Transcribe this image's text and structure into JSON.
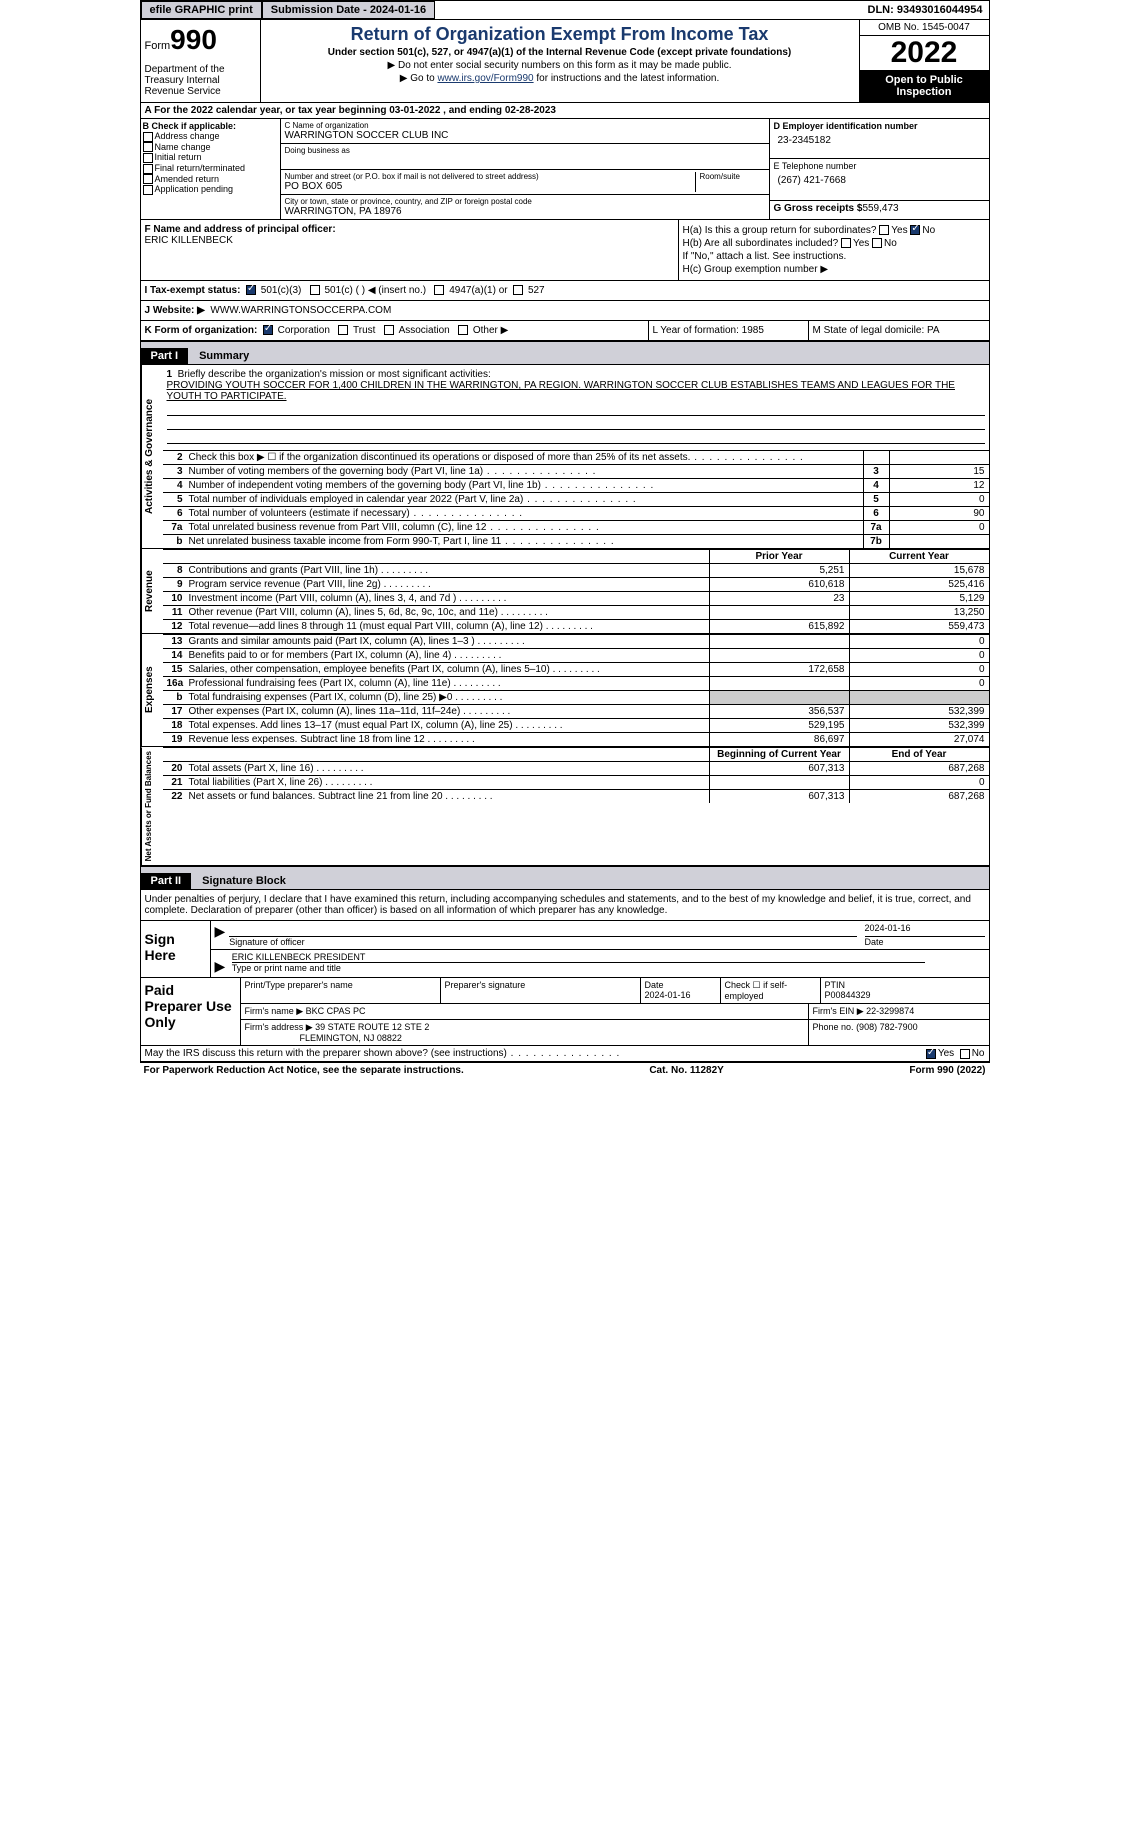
{
  "topbar": {
    "efile": "efile GRAPHIC print",
    "submission": "Submission Date - 2024-01-16",
    "dln": "DLN: 93493016044954"
  },
  "header": {
    "form_label": "Form",
    "form_num": "990",
    "dept": "Department of the Treasury Internal Revenue Service",
    "title": "Return of Organization Exempt From Income Tax",
    "subtitle": "Under section 501(c), 527, or 4947(a)(1) of the Internal Revenue Code (except private foundations)",
    "line1": "▶ Do not enter social security numbers on this form as it may be made public.",
    "line2_pre": "▶ Go to ",
    "line2_link": "www.irs.gov/Form990",
    "line2_post": " for instructions and the latest information.",
    "omb": "OMB No. 1545-0047",
    "year": "2022",
    "inspection": "Open to Public Inspection"
  },
  "lineA": "A For the 2022 calendar year, or tax year beginning 03-01-2022   , and ending 02-28-2023",
  "sectionB": {
    "header": "B Check if applicable:",
    "items": [
      "Address change",
      "Name change",
      "Initial return",
      "Final return/terminated",
      "Amended return",
      "Application pending"
    ],
    "c_label": "C Name of organization",
    "c_name": "WARRINGTON SOCCER CLUB INC",
    "dba": "Doing business as",
    "street_label": "Number and street (or P.O. box if mail is not delivered to street address)",
    "room": "Room/suite",
    "street": "PO BOX 605",
    "city_label": "City or town, state or province, country, and ZIP or foreign postal code",
    "city": "WARRINGTON, PA  18976",
    "d_label": "D Employer identification number",
    "d_val": "23-2345182",
    "e_label": "E Telephone number",
    "e_val": "(267) 421-7668",
    "g_label": "G Gross receipts $",
    "g_val": "559,473"
  },
  "sectionFH": {
    "f_label": "F Name and address of principal officer:",
    "f_name": "ERIC KILLENBECK",
    "ha": "H(a)  Is this a group return for subordinates?",
    "hb": "H(b)  Are all subordinates included?",
    "hb_note": "If \"No,\" attach a list. See instructions.",
    "hc": "H(c)  Group exemption number ▶",
    "yes": "Yes",
    "no": "No"
  },
  "status": {
    "label": "I   Tax-exempt status:",
    "s1": "501(c)(3)",
    "s2": "501(c) (  ) ◀ (insert no.)",
    "s3": "4947(a)(1) or",
    "s4": "527"
  },
  "website": {
    "label": "J  Website: ▶",
    "val": "WWW.WARRINGTONSOCCERPA.COM"
  },
  "rowK": {
    "k": "K Form of organization:",
    "corp": "Corporation",
    "trust": "Trust",
    "assoc": "Association",
    "other": "Other ▶",
    "l": "L Year of formation: 1985",
    "m": "M State of legal domicile: PA"
  },
  "part1": {
    "hdr": "Part I",
    "title": "Summary"
  },
  "mission": {
    "num": "1",
    "label": "Briefly describe the organization's mission or most significant activities:",
    "text": "PROVIDING YOUTH SOCCER FOR 1,400 CHILDREN IN THE WARRINGTON, PA REGION. WARRINGTON SOCCER CLUB ESTABLISHES TEAMS AND LEAGUES FOR THE YOUTH TO PARTICIPATE."
  },
  "gov_rows": [
    {
      "n": "2",
      "l": "Check this box ▶ ☐ if the organization discontinued its operations or disposed of more than 25% of its net assets.",
      "box": "",
      "v": ""
    },
    {
      "n": "3",
      "l": "Number of voting members of the governing body (Part VI, line 1a)",
      "box": "3",
      "v": "15"
    },
    {
      "n": "4",
      "l": "Number of independent voting members of the governing body (Part VI, line 1b)",
      "box": "4",
      "v": "12"
    },
    {
      "n": "5",
      "l": "Total number of individuals employed in calendar year 2022 (Part V, line 2a)",
      "box": "5",
      "v": "0"
    },
    {
      "n": "6",
      "l": "Total number of volunteers (estimate if necessary)",
      "box": "6",
      "v": "90"
    },
    {
      "n": "7a",
      "l": "Total unrelated business revenue from Part VIII, column (C), line 12",
      "box": "7a",
      "v": "0"
    },
    {
      "n": "b",
      "l": "Net unrelated business taxable income from Form 990-T, Part I, line 11",
      "box": "7b",
      "v": ""
    }
  ],
  "col_hdrs": {
    "prior": "Prior Year",
    "current": "Current Year",
    "boy": "Beginning of Current Year",
    "eoy": "End of Year"
  },
  "rev_rows": [
    {
      "n": "8",
      "l": "Contributions and grants (Part VIII, line 1h)",
      "p": "5,251",
      "c": "15,678"
    },
    {
      "n": "9",
      "l": "Program service revenue (Part VIII, line 2g)",
      "p": "610,618",
      "c": "525,416"
    },
    {
      "n": "10",
      "l": "Investment income (Part VIII, column (A), lines 3, 4, and 7d )",
      "p": "23",
      "c": "5,129"
    },
    {
      "n": "11",
      "l": "Other revenue (Part VIII, column (A), lines 5, 6d, 8c, 9c, 10c, and 11e)",
      "p": "",
      "c": "13,250"
    },
    {
      "n": "12",
      "l": "Total revenue—add lines 8 through 11 (must equal Part VIII, column (A), line 12)",
      "p": "615,892",
      "c": "559,473"
    }
  ],
  "exp_rows": [
    {
      "n": "13",
      "l": "Grants and similar amounts paid (Part IX, column (A), lines 1–3 )",
      "p": "",
      "c": "0"
    },
    {
      "n": "14",
      "l": "Benefits paid to or for members (Part IX, column (A), line 4)",
      "p": "",
      "c": "0"
    },
    {
      "n": "15",
      "l": "Salaries, other compensation, employee benefits (Part IX, column (A), lines 5–10)",
      "p": "172,658",
      "c": "0"
    },
    {
      "n": "16a",
      "l": "Professional fundraising fees (Part IX, column (A), line 11e)",
      "p": "",
      "c": "0"
    },
    {
      "n": "b",
      "l": "Total fundraising expenses (Part IX, column (D), line 25) ▶0",
      "p": "SHADE",
      "c": "SHADE"
    },
    {
      "n": "17",
      "l": "Other expenses (Part IX, column (A), lines 11a–11d, 11f–24e)",
      "p": "356,537",
      "c": "532,399"
    },
    {
      "n": "18",
      "l": "Total expenses. Add lines 13–17 (must equal Part IX, column (A), line 25)",
      "p": "529,195",
      "c": "532,399"
    },
    {
      "n": "19",
      "l": "Revenue less expenses. Subtract line 18 from line 12",
      "p": "86,697",
      "c": "27,074"
    }
  ],
  "net_rows": [
    {
      "n": "20",
      "l": "Total assets (Part X, line 16)",
      "p": "607,313",
      "c": "687,268"
    },
    {
      "n": "21",
      "l": "Total liabilities (Part X, line 26)",
      "p": "",
      "c": "0"
    },
    {
      "n": "22",
      "l": "Net assets or fund balances. Subtract line 21 from line 20",
      "p": "607,313",
      "c": "687,268"
    }
  ],
  "vert": {
    "gov": "Activities & Governance",
    "rev": "Revenue",
    "exp": "Expenses",
    "net": "Net Assets or Fund Balances"
  },
  "part2": {
    "hdr": "Part II",
    "title": "Signature Block"
  },
  "sig": {
    "decl": "Under penalties of perjury, I declare that I have examined this return, including accompanying schedules and statements, and to the best of my knowledge and belief, it is true, correct, and complete. Declaration of preparer (other than officer) is based on all information of which preparer has any knowledge.",
    "here": "Sign Here",
    "sig_officer": "Signature of officer",
    "date": "Date",
    "date_val": "2024-01-16",
    "name_title": "ERIC KILLENBECK  PRESIDENT",
    "type_name": "Type or print name and title"
  },
  "prep": {
    "label": "Paid Preparer Use Only",
    "print_name": "Print/Type preparer's name",
    "prep_sig": "Preparer's signature",
    "date_l": "Date",
    "date_v": "2024-01-16",
    "check_l": "Check ☐ if self-employed",
    "ptin_l": "PTIN",
    "ptin_v": "P00844329",
    "firm_name_l": "Firm's name    ▶",
    "firm_name": "BKC CPAS PC",
    "firm_ein_l": "Firm's EIN ▶",
    "firm_ein": "22-3299874",
    "firm_addr_l": "Firm's address ▶",
    "firm_addr": "39 STATE ROUTE 12 STE 2",
    "firm_addr2": "FLEMINGTON, NJ  08822",
    "phone_l": "Phone no.",
    "phone": "(908) 782-7900"
  },
  "discuss": {
    "q": "May the IRS discuss this return with the preparer shown above? (see instructions)",
    "yes": "Yes",
    "no": "No"
  },
  "footer": {
    "left": "For Paperwork Reduction Act Notice, see the separate instructions.",
    "mid": "Cat. No. 11282Y",
    "right": "Form 990 (2022)"
  }
}
